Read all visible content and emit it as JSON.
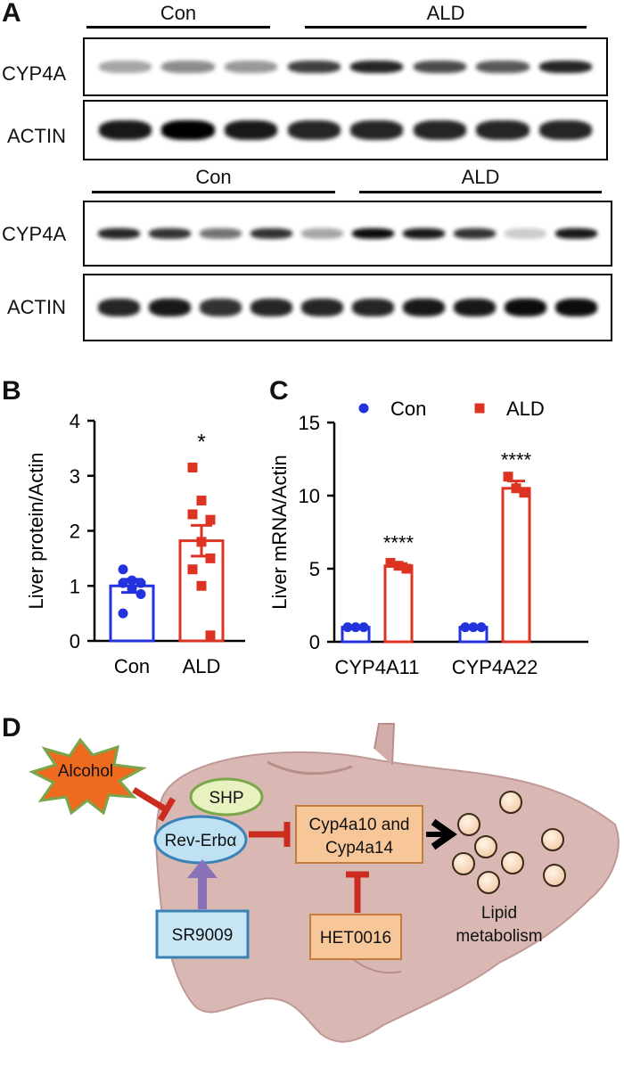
{
  "panel_a": {
    "letter": "A",
    "top": {
      "con_label": "Con",
      "ald_label": "ALD",
      "cyp_label": "CYP4A",
      "actin_label": "ACTIN",
      "cyp_intensity": [
        0.35,
        0.45,
        0.4,
        0.75,
        0.85,
        0.7,
        0.65,
        0.85
      ],
      "actin_intensity": [
        0.9,
        1.0,
        0.9,
        0.85,
        0.85,
        0.85,
        0.85,
        0.85
      ]
    },
    "bottom": {
      "con_label": "Con",
      "ald_label": "ALD",
      "cyp_label": "CYP4A",
      "actin_label": "ACTIN",
      "cyp_intensity": [
        0.85,
        0.8,
        0.55,
        0.8,
        0.35,
        0.95,
        0.9,
        0.8,
        0.2,
        0.9
      ],
      "actin_intensity": [
        0.85,
        0.9,
        0.8,
        0.85,
        0.85,
        0.85,
        0.9,
        0.9,
        0.95,
        0.95
      ]
    }
  },
  "panel_b": {
    "letter": "B",
    "chart_data": {
      "type": "bar",
      "ylabel": "Liver protein/Actin",
      "ylim": [
        0,
        4
      ],
      "yticks": [
        "0",
        "1",
        "2",
        "3",
        "4"
      ],
      "categories": [
        "Con",
        "ALD"
      ],
      "means": [
        1.0,
        1.82
      ],
      "sem": [
        0.12,
        0.28
      ],
      "colors": [
        "#2233dd",
        "#dd3322"
      ],
      "points": [
        [
          1.3,
          1.1,
          1.05,
          1.05,
          0.95,
          0.85,
          0.5
        ],
        [
          3.15,
          2.55,
          2.2,
          2.3,
          1.8,
          1.5,
          1.3,
          1.0,
          0.1
        ]
      ],
      "significance": [
        "",
        "*"
      ]
    }
  },
  "panel_c": {
    "letter": "C",
    "chart_data": {
      "type": "bar",
      "ylabel": "Liver mRNA/Actin",
      "ylim": [
        0,
        15
      ],
      "yticks": [
        "0",
        "5",
        "10",
        "15"
      ],
      "categories": [
        "CYP4A11",
        "CYP4A22"
      ],
      "series": [
        {
          "name": "Con",
          "color": "#2233dd",
          "values": [
            1.0,
            1.0
          ],
          "sem": [
            0.05,
            0.05
          ],
          "points": [
            [
              1.0,
              1.0,
              1.0
            ],
            [
              1.0,
              1.0,
              1.0
            ]
          ]
        },
        {
          "name": "ALD",
          "color": "#dd3322",
          "values": [
            5.2,
            10.5
          ],
          "sem": [
            0.15,
            0.5
          ],
          "points": [
            [
              5.4,
              5.2,
              5.0
            ],
            [
              11.3,
              10.5,
              10.2
            ]
          ]
        }
      ],
      "significance": [
        "****",
        "****"
      ]
    }
  },
  "panel_d": {
    "letter": "D",
    "alcohol": "Alcohol",
    "shp": "SHP",
    "rev_erb": "Rev-Erbα",
    "cyp_line1": "Cyp4a10 and",
    "cyp_line2": "Cyp4a14",
    "sr9009": "SR9009",
    "het0016": "HET0016",
    "lipid_line1": "Lipid",
    "lipid_line2": "metabolism"
  }
}
